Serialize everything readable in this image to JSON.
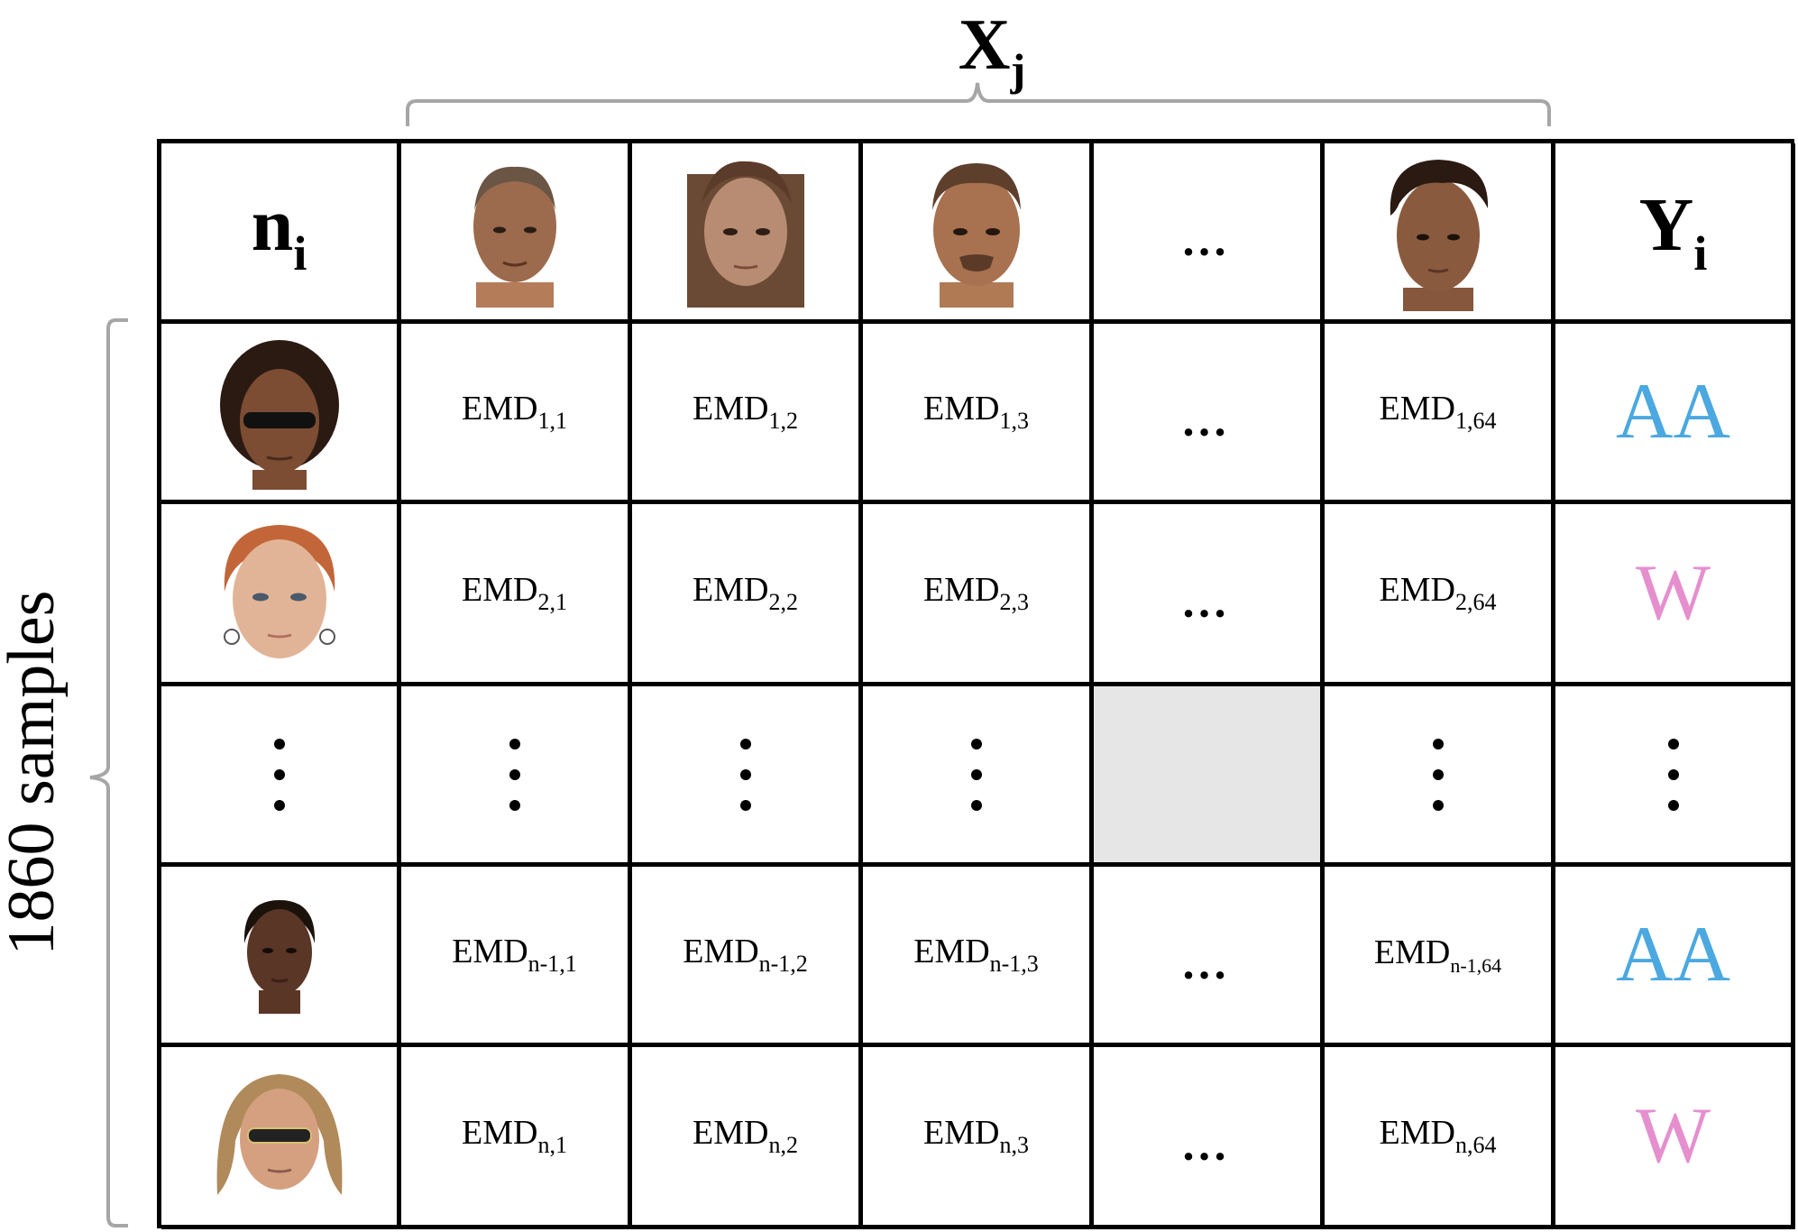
{
  "top_label": {
    "base": "X",
    "sub": "j"
  },
  "side_label": "1860 samples",
  "header": {
    "row_label": {
      "base": "n",
      "sub": "i"
    },
    "class_label": {
      "base": "Y",
      "sub": "i"
    },
    "column_faces": [
      "face-photo",
      "face-photo",
      "face-photo",
      "ellipsis",
      "face-photo"
    ],
    "ellipsis": "…"
  },
  "rows": [
    {
      "face": "face-photo-sunglasses",
      "cells": [
        {
          "base": "EMD",
          "sub": "1,1"
        },
        {
          "base": "EMD",
          "sub": "1,2"
        },
        {
          "base": "EMD",
          "sub": "1,3"
        },
        {
          "text": "…"
        },
        {
          "base": "EMD",
          "sub": "1,64"
        }
      ],
      "label": "AA",
      "label_color": "#4ba8e0"
    },
    {
      "face": "face-photo",
      "cells": [
        {
          "base": "EMD",
          "sub": "2,1"
        },
        {
          "base": "EMD",
          "sub": "2,2"
        },
        {
          "base": "EMD",
          "sub": "2,3"
        },
        {
          "text": "…"
        },
        {
          "base": "EMD",
          "sub": "2,64"
        }
      ],
      "label": "W",
      "label_color": "#e58fcf"
    },
    {
      "face": "vertical-ellipsis",
      "cells": "vertical-ellipsis",
      "label": "vertical-ellipsis"
    },
    {
      "face": "face-photo",
      "cells": [
        {
          "base": "EMD",
          "sub": "n-1,1"
        },
        {
          "base": "EMD",
          "sub": "n-1,2"
        },
        {
          "base": "EMD",
          "sub": "n-1,3"
        },
        {
          "text": "…"
        },
        {
          "base": "EMD",
          "sub": "n-1,64"
        }
      ],
      "label": "AA",
      "label_color": "#4ba8e0"
    },
    {
      "face": "face-photo-sunglasses",
      "cells": [
        {
          "base": "EMD",
          "sub": "n,1"
        },
        {
          "base": "EMD",
          "sub": "n,2"
        },
        {
          "base": "EMD",
          "sub": "n,3"
        },
        {
          "text": "…"
        },
        {
          "base": "EMD",
          "sub": "n,64"
        }
      ],
      "label": "W",
      "label_color": "#e58fcf"
    }
  ],
  "colors": {
    "grid": "#000000",
    "bracket": "#a6a6a6",
    "shade": "#e6e6e6"
  }
}
